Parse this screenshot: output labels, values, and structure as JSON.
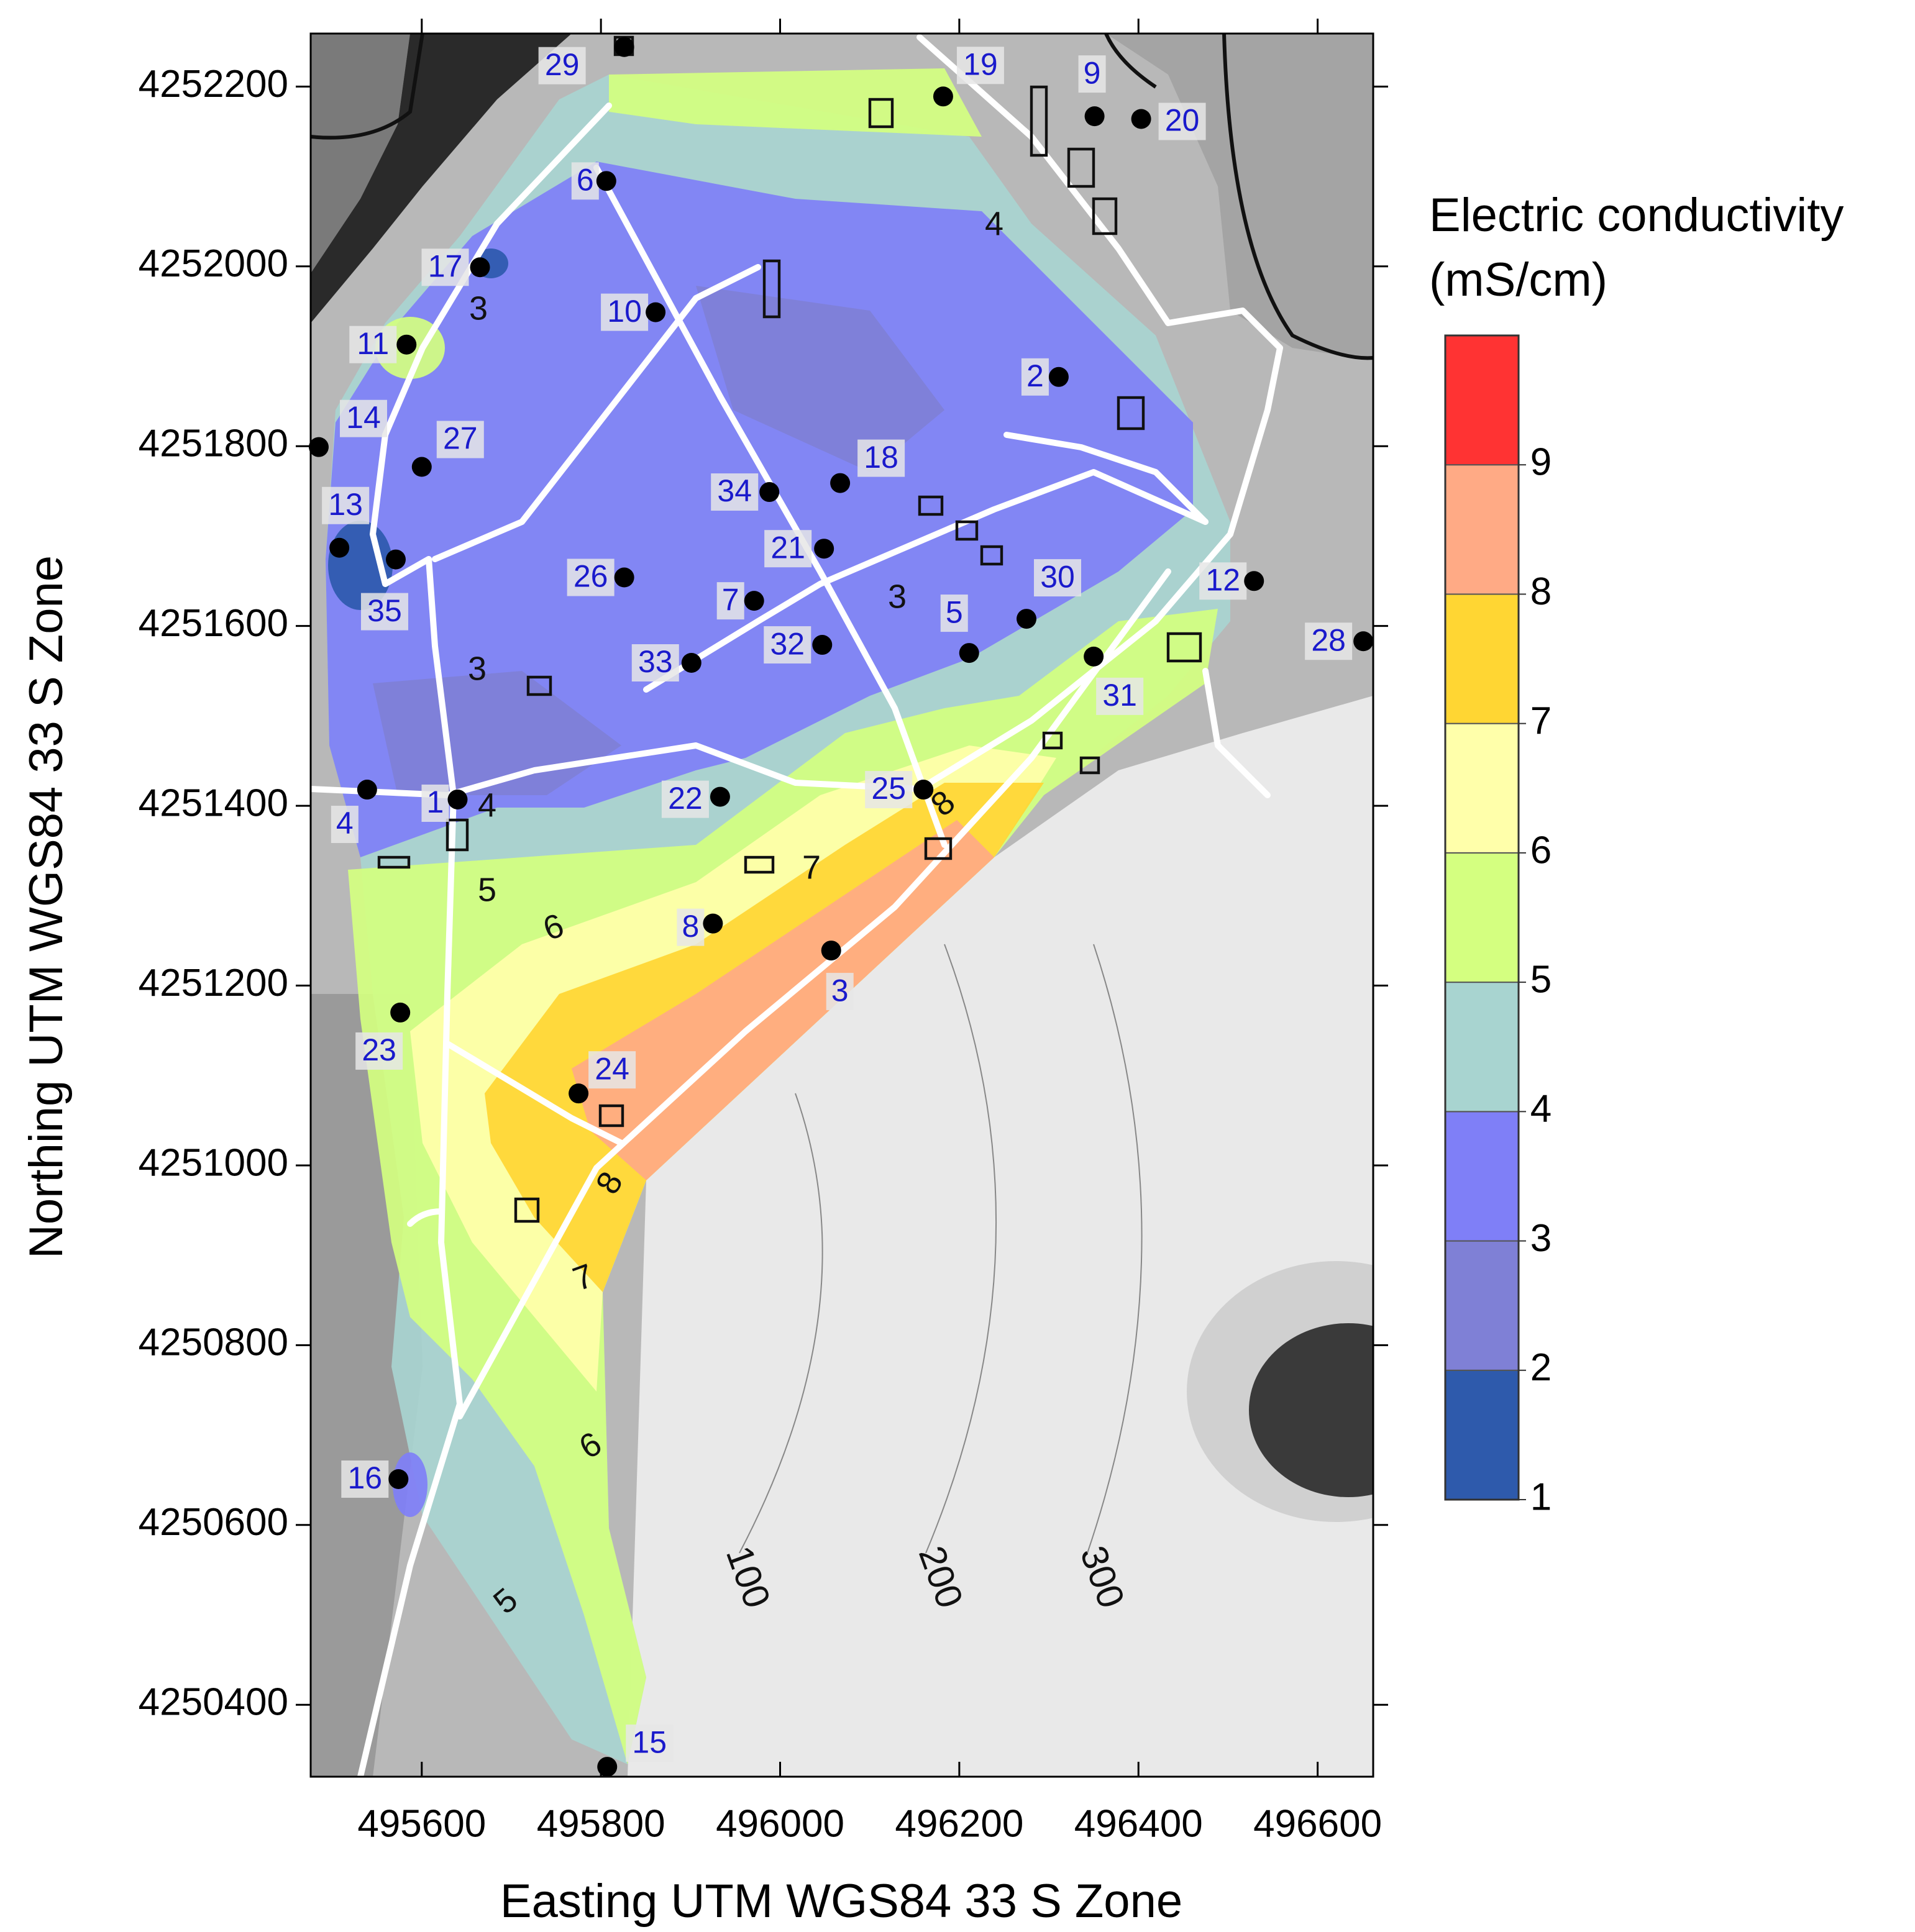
{
  "chart_data": {
    "type": "contour_map",
    "x_label": "Easting UTM WGS84 33 S Zone",
    "y_label": "Northing UTM WGS84 33 S Zone",
    "xlim": [
      495476,
      496662
    ],
    "ylim": [
      4250320,
      4252259
    ],
    "xticks": [
      495600,
      495800,
      496000,
      496200,
      496400,
      496600
    ],
    "yticks": [
      4250400,
      4250600,
      4250800,
      4251000,
      4251200,
      4251400,
      4251600,
      4251800,
      4252000,
      4252200
    ],
    "points": {
      "labels": [
        "29",
        "19",
        "9",
        "20",
        "6",
        "17",
        "10",
        "11",
        "2",
        "14",
        "27",
        "18",
        "34",
        "13",
        "21",
        "35",
        "26",
        "7",
        "30",
        "12",
        "5",
        "32",
        "31",
        "33",
        "28",
        "4",
        "1",
        "22",
        "25",
        "8",
        "3",
        "23",
        "24",
        "16",
        "15"
      ],
      "x": [
        495826,
        496182,
        496351,
        496403,
        495806,
        495665,
        495861,
        495583,
        496311,
        495485,
        495600,
        496067,
        495988,
        495508,
        496049,
        495571,
        495826,
        495971,
        496275,
        496529,
        496211,
        496047,
        496350,
        495901,
        496651,
        495539,
        495640,
        495933,
        496160,
        495925,
        496057,
        495576,
        495775,
        495574,
        495807
      ],
      "y": [
        4252244,
        4252189,
        4252167,
        4252164,
        4252095,
        4251999,
        4251949,
        4251913,
        4251877,
        4251799,
        4251777,
        4251759,
        4251749,
        4251687,
        4251686,
        4251674,
        4251654,
        4251628,
        4251608,
        4251650,
        4251570,
        4251579,
        4251566,
        4251559,
        4251583,
        4251418,
        4251407,
        4251410,
        4251418,
        4251269,
        4251239,
        4251170,
        4251080,
        4250651,
        4250331
      ]
    },
    "contour_labels": [
      4,
      3,
      3,
      4,
      5,
      6,
      3,
      7,
      8,
      8,
      7,
      6,
      5
    ],
    "elevation_labels": [
      100,
      200,
      300
    ],
    "colorbar": {
      "title": [
        "Electric conductivity",
        "(mS/cm)"
      ],
      "lim": [
        1,
        10
      ],
      "ticks": [
        1,
        2,
        3,
        4,
        5,
        6,
        7,
        8,
        9
      ],
      "colors": [
        "#2e5aac",
        "#7f80d6",
        "#7f7ff7",
        "#a8d4d0",
        "#d4ff80",
        "#ffffaa",
        "#ffd633",
        "#ffaa85",
        "#ff3333"
      ]
    }
  }
}
